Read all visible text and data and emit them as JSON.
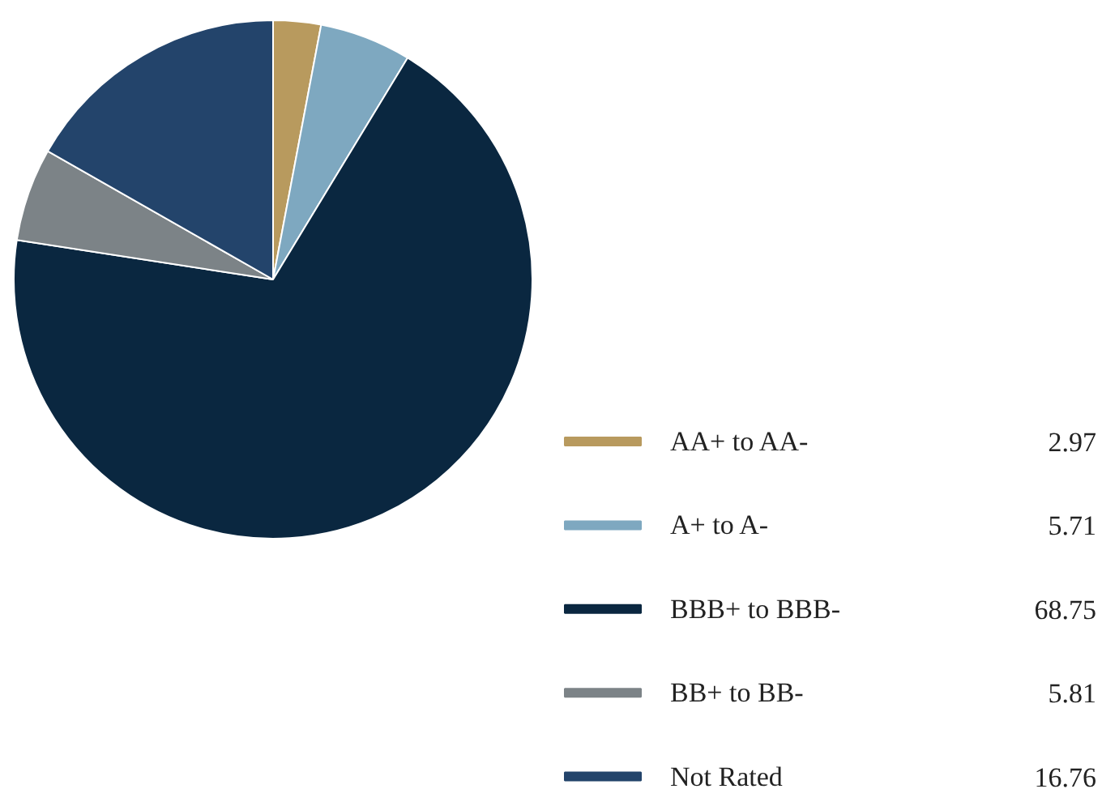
{
  "chart_data": {
    "type": "pie",
    "categories": [
      "AA+ to AA-",
      "A+ to A-",
      "BBB+ to BBB-",
      "BB+ to BB-",
      "Not Rated"
    ],
    "values": [
      2.97,
      5.71,
      68.75,
      5.81,
      16.76
    ],
    "colors": [
      "#b89a5e",
      "#7ea8c0",
      "#0a2740",
      "#7c8387",
      "#23446b"
    ],
    "data_labels": true,
    "legend": "bottom right"
  }
}
